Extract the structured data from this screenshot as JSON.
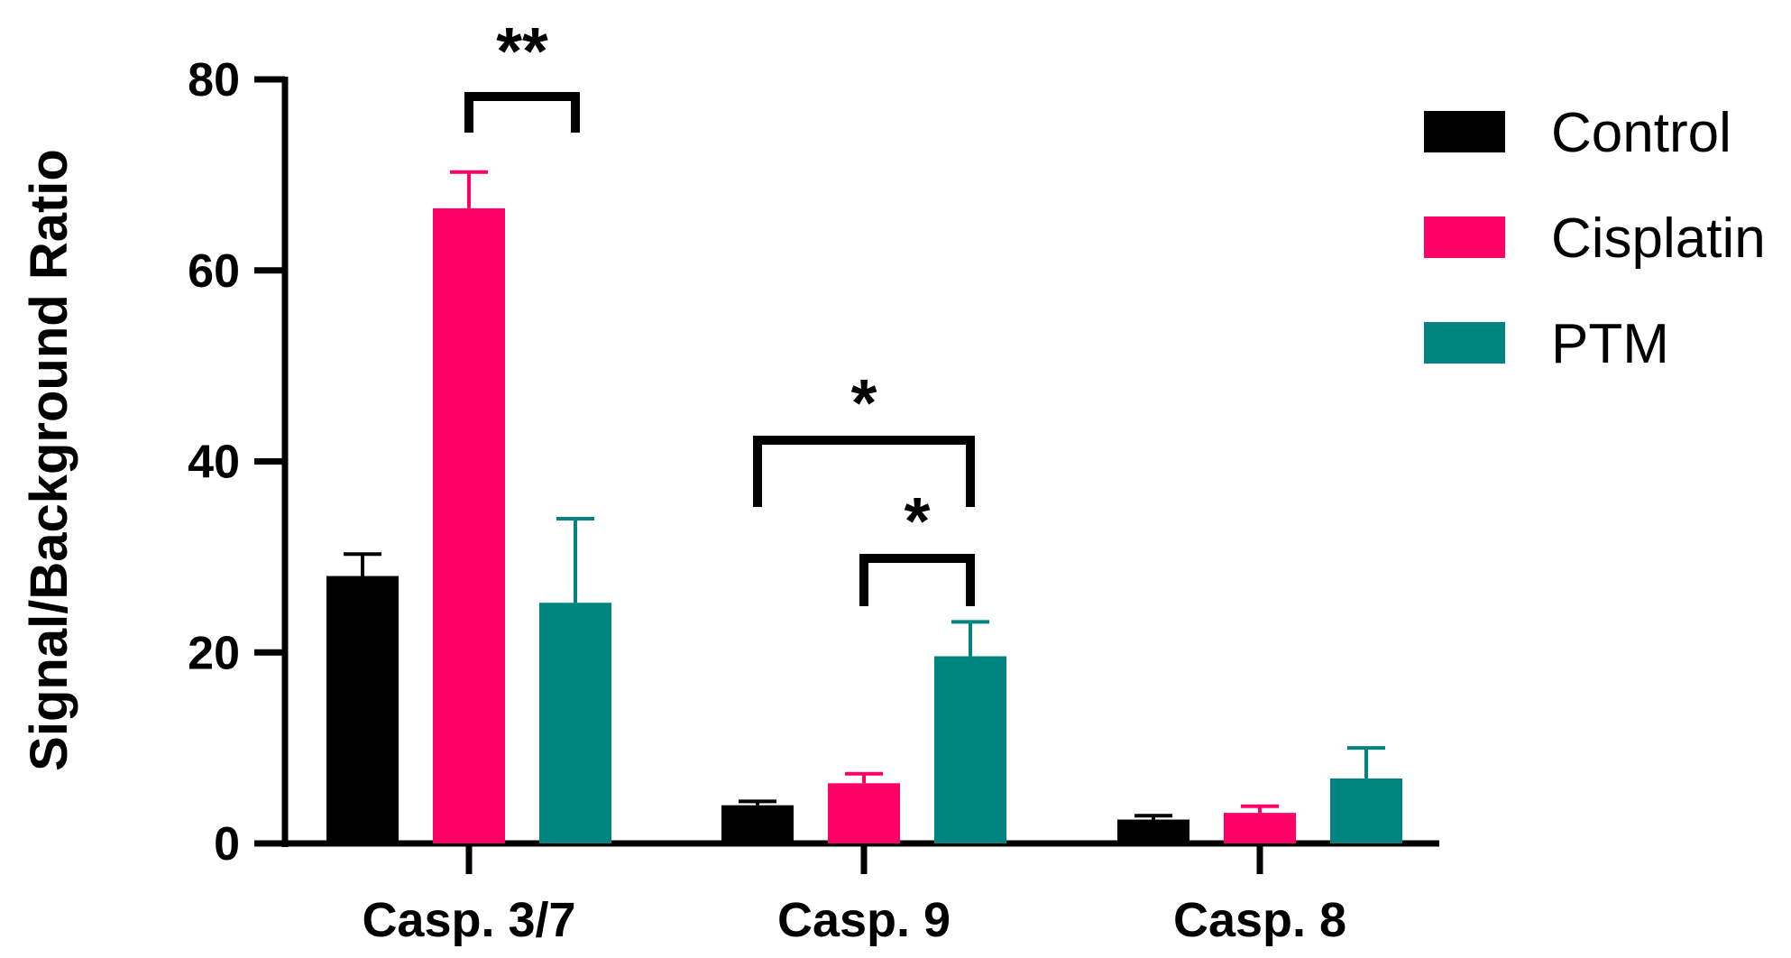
{
  "chart_data": {
    "type": "bar",
    "title": "",
    "xlabel": "",
    "ylabel": "Signal/Background Ratio",
    "ylim": [
      0,
      80
    ],
    "yticks": [
      0,
      20,
      40,
      60,
      80
    ],
    "categories": [
      "Casp. 3/7",
      "Casp. 9",
      "Casp. 8"
    ],
    "series": [
      {
        "name": "Control",
        "color": "#000000",
        "values": [
          28,
          4,
          2.5
        ],
        "errors": [
          2.3,
          0.4,
          0.4
        ]
      },
      {
        "name": "Cisplatin",
        "color": "#FF0066",
        "values": [
          66.5,
          6.3,
          3.2
        ],
        "errors": [
          3.8,
          1.0,
          0.7
        ]
      },
      {
        "name": "PTM",
        "color": "#008480",
        "values": [
          25.2,
          19.6,
          6.8
        ],
        "errors": [
          8.8,
          3.6,
          3.2
        ]
      }
    ],
    "legend": {
      "placement": "top-right"
    },
    "grid": false,
    "significance": [
      {
        "label": "**",
        "category": "Casp. 3/7",
        "from_series": "Cisplatin",
        "to_series": "PTM"
      },
      {
        "label": "*",
        "category": "Casp. 9",
        "from_series": "Control",
        "to_series": "PTM"
      },
      {
        "label": "*",
        "category": "Casp. 9",
        "from_series": "Cisplatin",
        "to_series": "PTM"
      }
    ]
  }
}
